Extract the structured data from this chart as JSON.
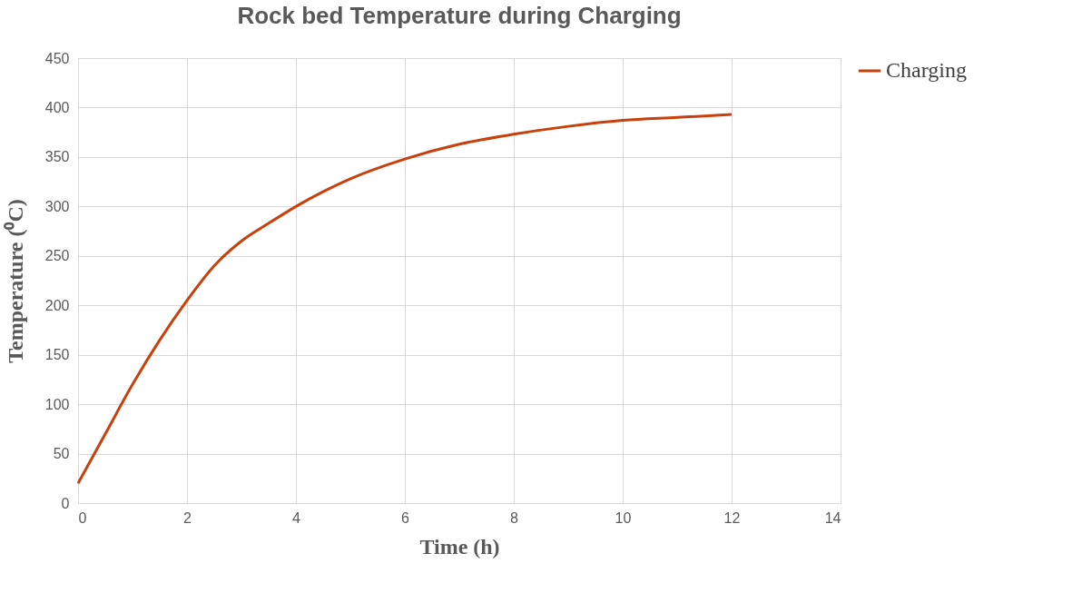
{
  "chart_data": {
    "type": "line",
    "title": "Rock bed Temperature during Charging",
    "xlabel": "Time (h)",
    "ylabel": "Temperature (⁰C)",
    "x": [
      0,
      0.5,
      1,
      1.5,
      2,
      2.5,
      3,
      3.5,
      4,
      5,
      6,
      7,
      8,
      9,
      10,
      11,
      12
    ],
    "series": [
      {
        "name": "Charging",
        "color": "#c8400c",
        "values": [
          20,
          70,
          120,
          165,
          205,
          240,
          265,
          283,
          300,
          328,
          348,
          363,
          373,
          381,
          387,
          390,
          393
        ]
      }
    ],
    "xlim": [
      0,
      14
    ],
    "xticks": [
      0,
      2,
      4,
      6,
      8,
      10,
      12,
      14
    ],
    "ylim": [
      0,
      450
    ],
    "yticks": [
      0,
      50,
      100,
      150,
      200,
      250,
      300,
      350,
      400,
      450
    ],
    "grid": true,
    "legend": "right",
    "marker": "none",
    "line_style": "solid"
  }
}
